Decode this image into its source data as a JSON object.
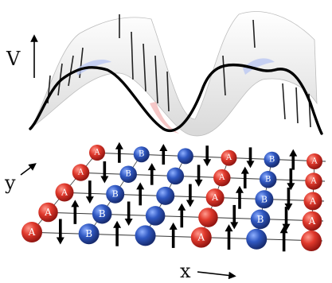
{
  "figure": {
    "axes": {
      "potential_label": "V",
      "y_label": "y",
      "x_label": "x"
    },
    "sublattices": [
      {
        "name": "A",
        "color": "#d8352a"
      },
      {
        "name": "B",
        "color": "#2f55b8"
      }
    ],
    "colors": {
      "surface_fill": "#ececec",
      "surface_line": "#000000",
      "lattice_line": "#333333",
      "spin_arrow": "#000000"
    },
    "rows": [
      {
        "atoms": [
          {
            "sublattice": "A",
            "labeled": true
          },
          {
            "sublattice": "B",
            "labeled": true
          },
          {
            "sublattice": "B",
            "labeled": false
          },
          {
            "sublattice": "A",
            "labeled": true
          },
          {
            "sublattice": "B",
            "labeled": false
          },
          {
            "sublattice": "A",
            "labeled": false
          }
        ]
      },
      {
        "atoms": [
          {
            "sublattice": "A",
            "labeled": true
          },
          {
            "sublattice": "B",
            "labeled": true
          },
          {
            "sublattice": "B",
            "labeled": false
          },
          {
            "sublattice": "A",
            "labeled": false
          },
          {
            "sublattice": "B",
            "labeled": true
          },
          {
            "sublattice": "A",
            "labeled": true
          }
        ]
      },
      {
        "atoms": [
          {
            "sublattice": "A",
            "labeled": true
          },
          {
            "sublattice": "B",
            "labeled": true
          },
          {
            "sublattice": "B",
            "labeled": false
          },
          {
            "sublattice": "A",
            "labeled": true
          },
          {
            "sublattice": "B",
            "labeled": true
          },
          {
            "sublattice": "A",
            "labeled": true
          }
        ]
      },
      {
        "atoms": [
          {
            "sublattice": "A",
            "labeled": true
          },
          {
            "sublattice": "B",
            "labeled": true
          },
          {
            "sublattice": "B",
            "labeled": false
          },
          {
            "sublattice": "A",
            "labeled": true
          },
          {
            "sublattice": "B",
            "labeled": true
          },
          {
            "sublattice": "A",
            "labeled": true
          }
        ]
      },
      {
        "atoms": [
          {
            "sublattice": "A",
            "labeled": true
          },
          {
            "sublattice": "B",
            "labeled": true
          },
          {
            "sublattice": "B",
            "labeled": false
          },
          {
            "sublattice": "A",
            "labeled": true
          },
          {
            "sublattice": "B",
            "labeled": true
          },
          {
            "sublattice": "A",
            "labeled": true
          }
        ]
      }
    ],
    "spins": [
      "up",
      "up",
      "down",
      "down",
      "up",
      "down",
      "up",
      "down",
      "up",
      "down",
      "down",
      "up",
      "down",
      "up",
      "down",
      "up",
      "down",
      "up",
      "down",
      "down",
      "down",
      "up",
      "up",
      "up",
      "up"
    ]
  }
}
